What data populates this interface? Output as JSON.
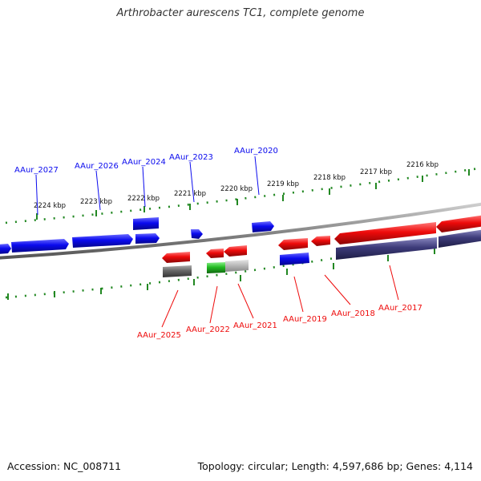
{
  "title": "Arthrobacter aurescens TC1, complete genome",
  "footer": {
    "accession": "Accession: NC_008711",
    "summary": "Topology: circular; Length: 4,597,686 bp; Genes: 4,114"
  },
  "colors": {
    "forward_strand": "#0a0aee",
    "reverse_strand": "#ee0a0a",
    "green_gene": "#22bb22",
    "gray_gene": "#bbbbbb",
    "dark_gray_gene": "#666666",
    "navy_gene": "#3d3b7a",
    "ticks": "#228822",
    "backbone": "#888888"
  },
  "scale_labels": [
    "2224 kbp",
    "2223 kbp",
    "2222 kbp",
    "2221 kbp",
    "2220 kbp",
    "2219 kbp",
    "2218 kbp",
    "2217 kbp",
    "2216 kbp"
  ],
  "gene_labels_top": [
    "AAur_2027",
    "AAur_2026",
    "AAur_2024",
    "AAur_2023",
    "AAur_2020"
  ],
  "gene_labels_bottom": [
    "AAur_2025",
    "AAur_2022",
    "AAur_2021",
    "AAur_2019",
    "AAur_2018",
    "AAur_2017"
  ]
}
